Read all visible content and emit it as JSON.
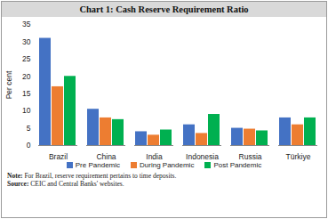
{
  "chart_data": {
    "type": "bar",
    "title": "Chart 1: Cash Reserve Requirement Ratio",
    "y_label": "Per cent",
    "categories": [
      "Brazil",
      "China",
      "India",
      "Indonesia",
      "Russia",
      "Türkiye"
    ],
    "series": [
      {
        "name": "Pre Pandemic",
        "color": "#4472c4",
        "values": [
          31,
          10.5,
          4,
          6,
          5,
          8
        ]
      },
      {
        "name": "During Pandemic",
        "color": "#ed7d31",
        "values": [
          17,
          8,
          3,
          3.5,
          4.75,
          6
        ]
      },
      {
        "name": "Post Pandemic",
        "color": "#00b050",
        "values": [
          20,
          7.5,
          4.5,
          9,
          4.25,
          8
        ]
      }
    ],
    "ylim": [
      0,
      35
    ],
    "yticks": [
      0,
      5,
      10,
      15,
      20,
      25,
      30,
      35
    ],
    "grid": false,
    "legend": "bottom",
    "notes": [
      "Note: For Brazil, reserve requirement pertains to time deposits.",
      "Source: CEIC and Central Banks' websites."
    ]
  }
}
